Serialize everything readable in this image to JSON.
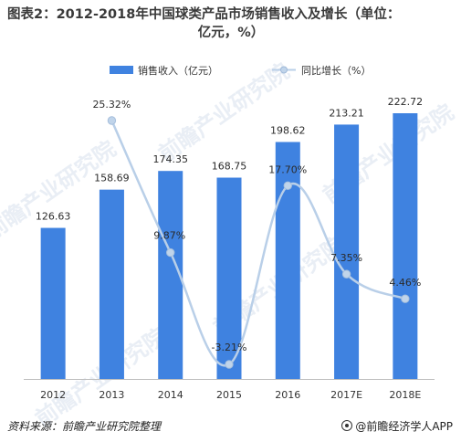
{
  "title_line1": "图表2：2012-2018年中国球类产品市场销售收入及增长（单位：",
  "title_line2": "亿元，%）",
  "source": "资料来源：前瞻产业研究院整理",
  "brand": "@前瞻经济学人APP",
  "watermark": "前瞻产业研究院",
  "colors": {
    "bar": "#3f82e0",
    "line": "#b9cfe8",
    "marker": "#c0d4ea",
    "axis": "#bfbfbf"
  },
  "chart_data": {
    "type": "bar",
    "categories": [
      "2012",
      "2013",
      "2014",
      "2015",
      "2016",
      "2017E",
      "2018E"
    ],
    "series": [
      {
        "name": "销售收入（亿元）",
        "type": "bar",
        "values": [
          126.63,
          158.69,
          174.35,
          168.75,
          198.62,
          213.21,
          222.72
        ],
        "labels": [
          "126.63",
          "158.69",
          "174.35",
          "168.75",
          "198.62",
          "213.21",
          "222.72"
        ]
      },
      {
        "name": "同比增长（%）",
        "type": "line",
        "values": [
          null,
          25.32,
          9.87,
          -3.21,
          17.7,
          7.35,
          4.46
        ],
        "labels": [
          "",
          "25.32%",
          "9.87%",
          "-3.21%",
          "17.70%",
          "7.35%",
          "4.46%"
        ]
      }
    ],
    "ylim_bar": [
      0,
      222.72
    ],
    "ylim_line": [
      -3.21,
      25.32
    ],
    "legend_position": "top",
    "grid": false
  }
}
